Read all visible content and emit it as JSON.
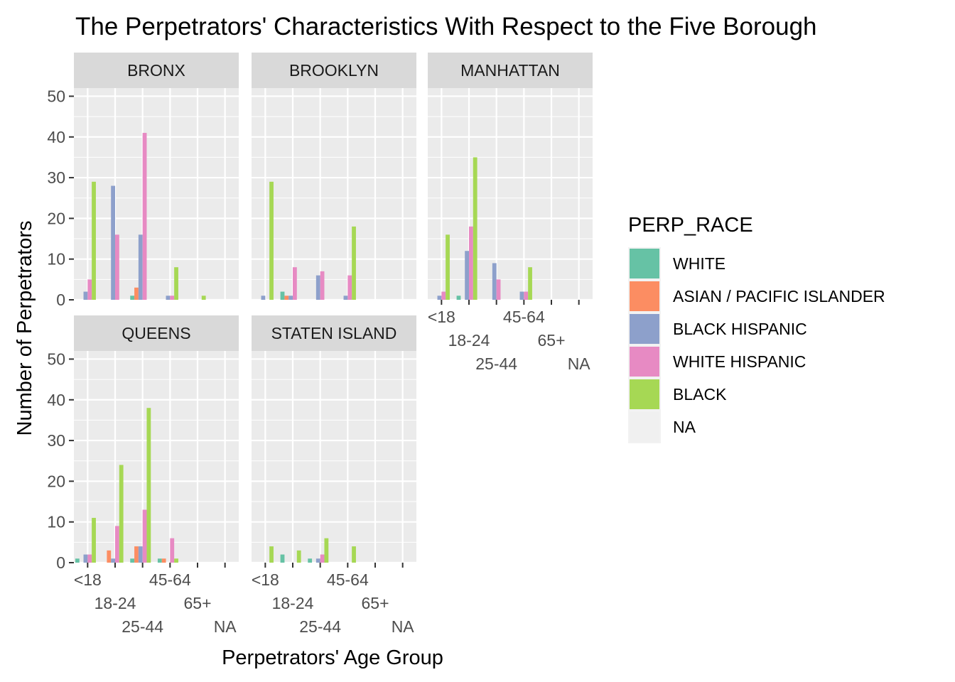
{
  "chart_data": {
    "type": "bar",
    "title": "The Perpetrators' Characteristics With Respect to the Five Borough",
    "xlabel": "Perpetrators' Age Group",
    "ylabel": "Number of Perpetrators",
    "ylim": [
      0,
      52
    ],
    "yticks": [
      0,
      10,
      20,
      30,
      40,
      50
    ],
    "categories": [
      "<18",
      "18-24",
      "25-44",
      "45-64",
      "65+",
      "NA"
    ],
    "grid": true,
    "legend_position": "right",
    "legend_title": "PERP_RACE",
    "series": [
      {
        "name": "WHITE",
        "color": "#66c2a5"
      },
      {
        "name": "ASIAN / PACIFIC ISLANDER",
        "color": "#fc8d62"
      },
      {
        "name": "BLACK HISPANIC",
        "color": "#8da0cb"
      },
      {
        "name": "WHITE HISPANIC",
        "color": "#e78ac3"
      },
      {
        "name": "BLACK",
        "color": "#a6d854"
      },
      {
        "name": "NA",
        "color": "#f0f0f0"
      }
    ],
    "panels": [
      {
        "name": "BRONX",
        "values": {
          "<18": {
            "BLACK HISPANIC": 2,
            "WHITE HISPANIC": 5,
            "BLACK": 29
          },
          "18-24": {
            "BLACK HISPANIC": 28,
            "WHITE HISPANIC": 16
          },
          "25-44": {
            "WHITE": 1,
            "ASIAN / PACIFIC ISLANDER": 3,
            "BLACK HISPANIC": 16,
            "WHITE HISPANIC": 41
          },
          "45-64": {
            "BLACK HISPANIC": 1,
            "WHITE HISPANIC": 1,
            "BLACK": 8
          },
          "65+": {
            "BLACK": 1
          },
          "NA": {}
        }
      },
      {
        "name": "BROOKLYN",
        "values": {
          "<18": {
            "BLACK HISPANIC": 1,
            "BLACK": 29
          },
          "18-24": {
            "WHITE": 2,
            "ASIAN / PACIFIC ISLANDER": 1,
            "BLACK HISPANIC": 1,
            "WHITE HISPANIC": 8
          },
          "25-44": {
            "BLACK HISPANIC": 6,
            "WHITE HISPANIC": 7
          },
          "45-64": {
            "BLACK HISPANIC": 1,
            "WHITE HISPANIC": 6,
            "BLACK": 18
          },
          "65+": {},
          "NA": {}
        }
      },
      {
        "name": "MANHATTAN",
        "values": {
          "<18": {
            "BLACK HISPANIC": 1,
            "WHITE HISPANIC": 2,
            "BLACK": 16
          },
          "18-24": {
            "WHITE": 1,
            "BLACK HISPANIC": 12,
            "WHITE HISPANIC": 18,
            "BLACK": 35
          },
          "25-44": {
            "BLACK HISPANIC": 9,
            "WHITE HISPANIC": 5
          },
          "45-64": {
            "BLACK HISPANIC": 2,
            "WHITE HISPANIC": 2,
            "BLACK": 8
          },
          "65+": {},
          "NA": {}
        }
      },
      {
        "name": "QUEENS",
        "values": {
          "<18": {
            "WHITE": 1,
            "BLACK HISPANIC": 2,
            "WHITE HISPANIC": 2,
            "BLACK": 11
          },
          "18-24": {
            "ASIAN / PACIFIC ISLANDER": 3,
            "BLACK HISPANIC": 1,
            "WHITE HISPANIC": 9,
            "BLACK": 24
          },
          "25-44": {
            "WHITE": 1,
            "ASIAN / PACIFIC ISLANDER": 4,
            "BLACK HISPANIC": 4,
            "WHITE HISPANIC": 13,
            "BLACK": 38
          },
          "45-64": {
            "WHITE": 1,
            "ASIAN / PACIFIC ISLANDER": 1,
            "WHITE HISPANIC": 6,
            "BLACK": 1
          },
          "65+": {},
          "NA": {}
        }
      },
      {
        "name": "STATEN ISLAND",
        "values": {
          "<18": {
            "BLACK": 4
          },
          "18-24": {
            "WHITE": 2,
            "BLACK": 3
          },
          "25-44": {
            "WHITE": 1,
            "BLACK HISPANIC": 1,
            "WHITE HISPANIC": 2,
            "BLACK": 6
          },
          "45-64": {
            "BLACK": 4
          },
          "65+": {},
          "NA": {}
        }
      }
    ]
  }
}
